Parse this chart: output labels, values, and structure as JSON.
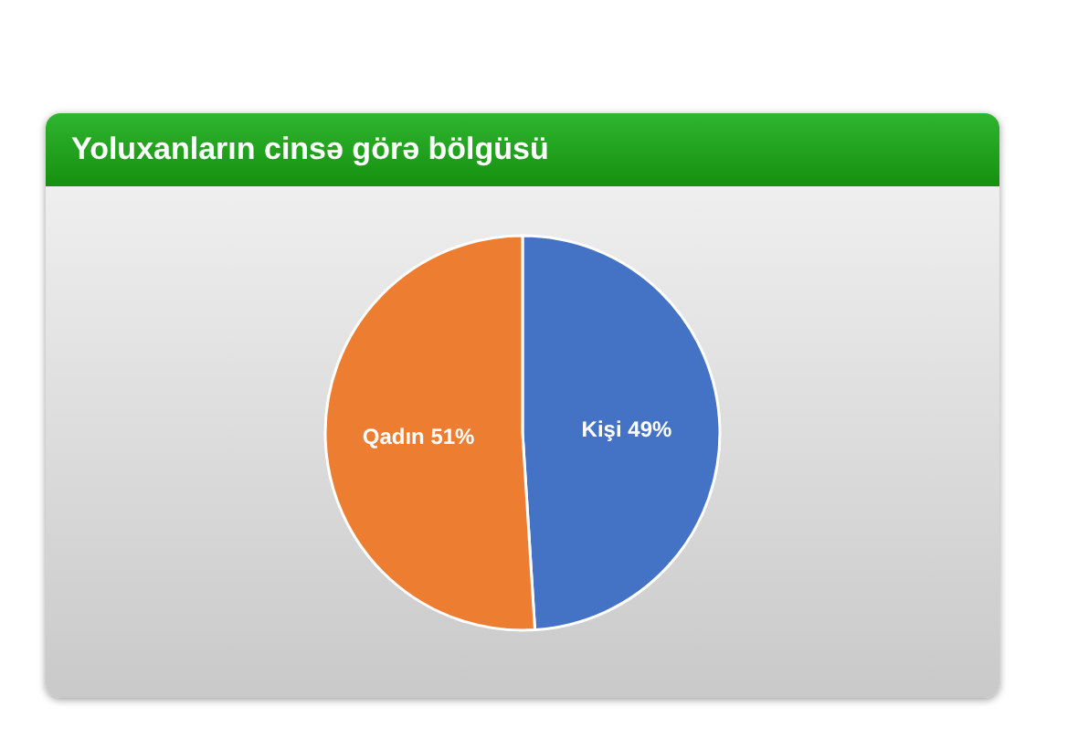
{
  "chart_data": {
    "type": "pie",
    "title": "Yoluxanların cinsə görə bölgüsü",
    "categories": [
      "Kişi",
      "Qadın"
    ],
    "values": [
      49,
      51
    ],
    "colors": [
      "#4472c4",
      "#ed7d31"
    ],
    "value_labels": [
      "49%",
      "51%"
    ],
    "legend": false
  }
}
